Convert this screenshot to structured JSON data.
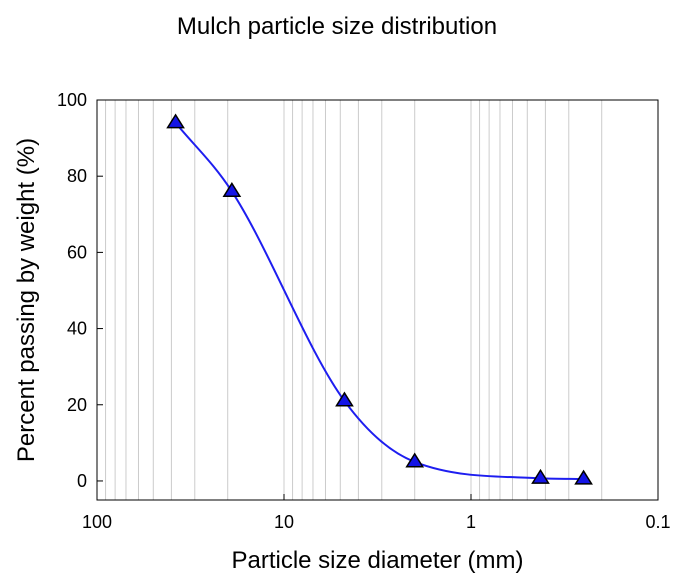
{
  "chart_data": {
    "type": "scatter",
    "title": "Mulch particle size distribution",
    "xlabel": "Particle size diameter (mm)",
    "ylabel": "Percent passing by weight (%)",
    "xscale": "log",
    "x_reversed": true,
    "xlim": [
      100,
      0.1
    ],
    "ylim": [
      -5,
      100
    ],
    "x_ticks": [
      100,
      10,
      1,
      0.1
    ],
    "x_tick_labels": [
      "100",
      "10",
      "1",
      "0.1"
    ],
    "y_ticks": [
      0,
      20,
      40,
      60,
      80,
      100
    ],
    "y_tick_labels": [
      "0",
      "20",
      "40",
      "60",
      "80",
      "100"
    ],
    "grid": "vertical minor lines on log scale",
    "legend": "none",
    "series": [
      {
        "x": [
          38,
          19,
          4.75,
          2,
          0.425,
          0.25
        ],
        "y": [
          94,
          76,
          21,
          5,
          0.7,
          0.5
        ],
        "marker": "triangle",
        "marker_color": "#1414e6",
        "line_color": "#1e1ef0",
        "line": "smooth"
      }
    ]
  }
}
